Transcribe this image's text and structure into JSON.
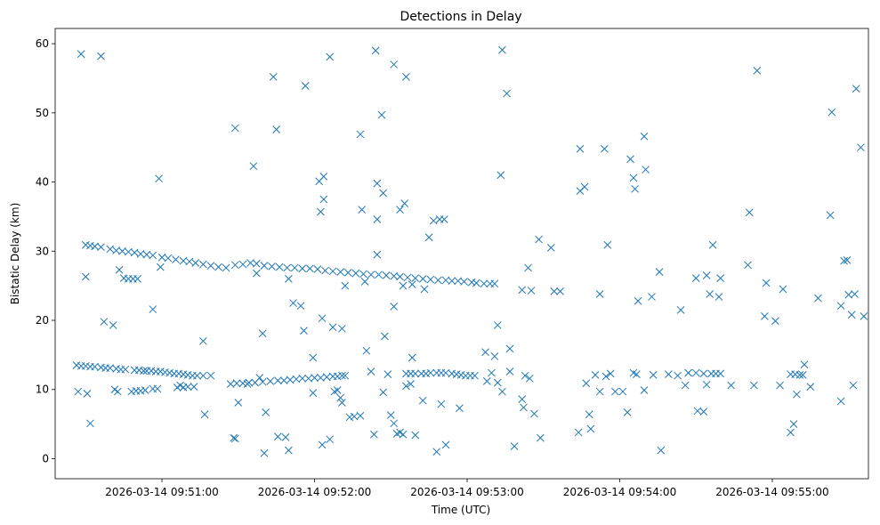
{
  "chart_data": {
    "type": "scatter",
    "title": "Detections in Delay",
    "xlabel": "Time (UTC)",
    "ylabel": "Bistatic Delay (km)",
    "marker": "x",
    "color": "#1f77b4",
    "x_unit": "minutes after 2026-03-14 09:50:00",
    "xlim": [
      0.3,
      5.63
    ],
    "ylim": [
      -2.9,
      62.2
    ],
    "xticks": [
      {
        "value": 1,
        "label": "2026-03-14 09:51:00"
      },
      {
        "value": 2,
        "label": "2026-03-14 09:52:00"
      },
      {
        "value": 3,
        "label": "2026-03-14 09:53:00"
      },
      {
        "value": 4,
        "label": "2026-03-14 09:54:00"
      },
      {
        "value": 5,
        "label": "2026-03-14 09:55:00"
      }
    ],
    "yticks": [
      0,
      10,
      20,
      30,
      40,
      50,
      60
    ],
    "points": [
      [
        0.44,
        13.5
      ],
      [
        0.47,
        13.4
      ],
      [
        0.5,
        13.4
      ],
      [
        0.53,
        13.3
      ],
      [
        0.56,
        13.3
      ],
      [
        0.6,
        13.2
      ],
      [
        0.63,
        13.1
      ],
      [
        0.66,
        13.1
      ],
      [
        0.7,
        13.0
      ],
      [
        0.73,
        12.9
      ],
      [
        0.76,
        12.9
      ],
      [
        0.82,
        12.8
      ],
      [
        0.85,
        12.8
      ],
      [
        0.88,
        12.7
      ],
      [
        0.9,
        12.7
      ],
      [
        0.93,
        12.7
      ],
      [
        0.96,
        12.6
      ],
      [
        0.99,
        12.6
      ],
      [
        1.02,
        12.5
      ],
      [
        1.05,
        12.4
      ],
      [
        1.08,
        12.3
      ],
      [
        1.11,
        12.3
      ],
      [
        1.14,
        12.2
      ],
      [
        1.17,
        12.1
      ],
      [
        1.2,
        12.0
      ],
      [
        1.23,
        12.0
      ],
      [
        1.27,
        12.0
      ],
      [
        1.32,
        12.0
      ],
      [
        0.8,
        9.7
      ],
      [
        0.83,
        9.8
      ],
      [
        0.86,
        9.8
      ],
      [
        0.89,
        9.9
      ],
      [
        0.94,
        10.1
      ],
      [
        0.97,
        10.1
      ],
      [
        1.1,
        10.3
      ],
      [
        1.14,
        10.3
      ],
      [
        1.17,
        10.4
      ],
      [
        1.21,
        10.4
      ],
      [
        1.45,
        10.8
      ],
      [
        1.49,
        10.9
      ],
      [
        1.53,
        10.9
      ],
      [
        1.57,
        11.0
      ],
      [
        1.61,
        11.0
      ],
      [
        1.66,
        11.1
      ],
      [
        1.71,
        11.2
      ],
      [
        1.76,
        11.3
      ],
      [
        1.8,
        11.3
      ],
      [
        1.84,
        11.4
      ],
      [
        1.88,
        11.5
      ],
      [
        1.92,
        11.6
      ],
      [
        1.96,
        11.6
      ],
      [
        2.0,
        11.7
      ],
      [
        2.04,
        11.7
      ],
      [
        2.08,
        11.8
      ],
      [
        2.12,
        11.9
      ],
      [
        2.15,
        11.9
      ],
      [
        2.18,
        12.0
      ],
      [
        2.2,
        12.0
      ],
      [
        2.6,
        12.3
      ],
      [
        2.63,
        12.3
      ],
      [
        2.66,
        12.3
      ],
      [
        2.7,
        12.3
      ],
      [
        2.73,
        12.3
      ],
      [
        2.76,
        12.4
      ],
      [
        2.8,
        12.4
      ],
      [
        2.83,
        12.4
      ],
      [
        2.86,
        12.4
      ],
      [
        2.9,
        12.3
      ],
      [
        2.93,
        12.2
      ],
      [
        2.96,
        12.1
      ],
      [
        2.99,
        12.0
      ],
      [
        3.02,
        12.0
      ],
      [
        3.05,
        12.0
      ],
      [
        4.45,
        12.4
      ],
      [
        4.5,
        12.4
      ],
      [
        4.55,
        12.3
      ],
      [
        4.6,
        12.3
      ],
      [
        4.63,
        12.3
      ],
      [
        4.66,
        12.3
      ],
      [
        5.12,
        12.2
      ],
      [
        5.15,
        12.2
      ],
      [
        5.18,
        12.1
      ],
      [
        5.2,
        12.1
      ],
      [
        0.5,
        30.9
      ],
      [
        0.53,
        30.8
      ],
      [
        0.56,
        30.7
      ],
      [
        0.6,
        30.6
      ],
      [
        0.66,
        30.3
      ],
      [
        0.7,
        30.1
      ],
      [
        0.74,
        30.0
      ],
      [
        0.78,
        29.9
      ],
      [
        0.82,
        29.8
      ],
      [
        0.86,
        29.6
      ],
      [
        0.9,
        29.5
      ],
      [
        0.94,
        29.4
      ],
      [
        1.0,
        29.1
      ],
      [
        1.04,
        29.0
      ],
      [
        1.09,
        28.8
      ],
      [
        1.14,
        28.6
      ],
      [
        1.18,
        28.5
      ],
      [
        1.22,
        28.3
      ],
      [
        1.27,
        28.1
      ],
      [
        1.32,
        27.9
      ],
      [
        1.37,
        27.7
      ],
      [
        1.42,
        27.6
      ],
      [
        1.48,
        28.0
      ],
      [
        1.53,
        28.1
      ],
      [
        1.58,
        28.3
      ],
      [
        1.62,
        28.2
      ],
      [
        1.67,
        27.9
      ],
      [
        1.72,
        27.8
      ],
      [
        1.77,
        27.7
      ],
      [
        1.82,
        27.6
      ],
      [
        1.87,
        27.6
      ],
      [
        1.92,
        27.5
      ],
      [
        1.97,
        27.5
      ],
      [
        2.02,
        27.4
      ],
      [
        2.07,
        27.2
      ],
      [
        2.12,
        27.1
      ],
      [
        2.17,
        27.0
      ],
      [
        2.22,
        26.9
      ],
      [
        2.27,
        26.8
      ],
      [
        2.32,
        26.7
      ],
      [
        2.37,
        26.6
      ],
      [
        2.42,
        26.6
      ],
      [
        2.47,
        26.5
      ],
      [
        2.52,
        26.4
      ],
      [
        2.56,
        26.3
      ],
      [
        2.61,
        26.2
      ],
      [
        2.66,
        26.1
      ],
      [
        2.71,
        26.0
      ],
      [
        2.76,
        25.9
      ],
      [
        2.81,
        25.8
      ],
      [
        2.86,
        25.8
      ],
      [
        2.9,
        25.7
      ],
      [
        2.94,
        25.7
      ],
      [
        2.98,
        25.6
      ],
      [
        3.03,
        25.5
      ],
      [
        3.06,
        25.4
      ],
      [
        3.11,
        25.3
      ],
      [
        3.15,
        25.3
      ],
      [
        3.18,
        25.3
      ],
      [
        0.75,
        26.1
      ],
      [
        0.78,
        26.0
      ],
      [
        0.81,
        26.0
      ],
      [
        0.84,
        26.0
      ],
      [
        2.58,
        25.0
      ],
      [
        2.64,
        25.2
      ],
      [
        0.47,
        58.5
      ],
      [
        0.6,
        58.2
      ],
      [
        1.73,
        55.2
      ],
      [
        1.94,
        53.9
      ],
      [
        2.1,
        58.1
      ],
      [
        2.4,
        59.0
      ],
      [
        2.52,
        57.0
      ],
      [
        2.6,
        55.2
      ],
      [
        3.23,
        59.1
      ],
      [
        3.26,
        52.8
      ],
      [
        4.9,
        56.1
      ],
      [
        5.39,
        50.1
      ],
      [
        5.55,
        53.5
      ],
      [
        1.48,
        47.8
      ],
      [
        1.75,
        47.6
      ],
      [
        2.3,
        46.9
      ],
      [
        2.44,
        49.7
      ],
      [
        3.74,
        44.8
      ],
      [
        3.9,
        44.8
      ],
      [
        4.16,
        46.6
      ],
      [
        5.58,
        45.0
      ],
      [
        0.98,
        40.5
      ],
      [
        1.6,
        42.3
      ],
      [
        2.03,
        40.1
      ],
      [
        2.06,
        40.8
      ],
      [
        2.04,
        35.7
      ],
      [
        2.06,
        37.5
      ],
      [
        2.31,
        36.0
      ],
      [
        2.41,
        39.8
      ],
      [
        2.45,
        38.4
      ],
      [
        2.56,
        36.0
      ],
      [
        2.59,
        36.9
      ],
      [
        2.41,
        34.6
      ],
      [
        2.78,
        34.4
      ],
      [
        2.82,
        34.6
      ],
      [
        2.85,
        34.6
      ],
      [
        3.22,
        41.0
      ],
      [
        3.74,
        38.7
      ],
      [
        3.77,
        39.3
      ],
      [
        4.07,
        43.3
      ],
      [
        4.17,
        41.8
      ],
      [
        4.09,
        40.6
      ],
      [
        4.1,
        39.0
      ],
      [
        4.85,
        35.6
      ],
      [
        5.38,
        35.2
      ],
      [
        0.5,
        26.3
      ],
      [
        0.62,
        19.8
      ],
      [
        0.68,
        19.3
      ],
      [
        0.72,
        27.3
      ],
      [
        0.94,
        21.6
      ],
      [
        0.99,
        27.7
      ],
      [
        1.62,
        26.8
      ],
      [
        1.83,
        26.0
      ],
      [
        1.86,
        22.5
      ],
      [
        1.91,
        22.1
      ],
      [
        1.93,
        18.5
      ],
      [
        1.99,
        14.6
      ],
      [
        2.05,
        20.3
      ],
      [
        2.12,
        19.0
      ],
      [
        2.18,
        18.8
      ],
      [
        2.2,
        25.0
      ],
      [
        2.33,
        25.6
      ],
      [
        2.41,
        29.5
      ],
      [
        2.46,
        17.7
      ],
      [
        2.52,
        22.0
      ],
      [
        2.64,
        14.6
      ],
      [
        2.72,
        24.5
      ],
      [
        2.75,
        32.0
      ],
      [
        3.12,
        15.4
      ],
      [
        3.18,
        14.8
      ],
      [
        3.2,
        19.3
      ],
      [
        3.28,
        15.9
      ],
      [
        3.36,
        24.4
      ],
      [
        3.4,
        27.6
      ],
      [
        3.42,
        24.3
      ],
      [
        3.47,
        31.7
      ],
      [
        3.55,
        30.5
      ],
      [
        3.57,
        24.2
      ],
      [
        3.87,
        23.8
      ],
      [
        3.92,
        30.9
      ],
      [
        4.12,
        22.8
      ],
      [
        4.21,
        23.4
      ],
      [
        4.26,
        27.0
      ],
      [
        4.4,
        21.5
      ],
      [
        4.5,
        26.1
      ],
      [
        4.57,
        26.5
      ],
      [
        4.59,
        23.8
      ],
      [
        4.61,
        30.9
      ],
      [
        4.65,
        23.4
      ],
      [
        4.66,
        26.1
      ],
      [
        4.84,
        28.0
      ],
      [
        4.95,
        20.6
      ],
      [
        4.96,
        25.4
      ],
      [
        5.02,
        19.9
      ],
      [
        5.07,
        24.5
      ],
      [
        5.45,
        22.1
      ],
      [
        5.47,
        28.6
      ],
      [
        5.49,
        28.7
      ],
      [
        5.5,
        23.7
      ],
      [
        5.54,
        23.8
      ],
      [
        5.52,
        20.8
      ],
      [
        5.6,
        20.6
      ],
      [
        5.3,
        23.2
      ],
      [
        0.45,
        9.7
      ],
      [
        0.51,
        9.4
      ],
      [
        0.53,
        5.1
      ],
      [
        0.69,
        10.0
      ],
      [
        0.71,
        9.7
      ],
      [
        1.12,
        10.6
      ],
      [
        1.27,
        17.0
      ],
      [
        1.28,
        6.4
      ],
      [
        1.47,
        3.0
      ],
      [
        1.48,
        2.9
      ],
      [
        1.5,
        8.1
      ],
      [
        1.56,
        10.8
      ],
      [
        1.64,
        11.7
      ],
      [
        1.66,
        18.1
      ],
      [
        1.68,
        6.7
      ],
      [
        1.67,
        0.8
      ],
      [
        1.76,
        3.2
      ],
      [
        1.81,
        3.1
      ],
      [
        1.83,
        1.2
      ],
      [
        1.99,
        9.5
      ],
      [
        2.05,
        2.0
      ],
      [
        2.1,
        2.8
      ],
      [
        2.13,
        9.7
      ],
      [
        2.15,
        9.9
      ],
      [
        2.17,
        8.8
      ],
      [
        2.18,
        8.1
      ],
      [
        2.23,
        6.0
      ],
      [
        2.26,
        6.1
      ],
      [
        2.3,
        6.2
      ],
      [
        2.34,
        15.6
      ],
      [
        2.37,
        12.6
      ],
      [
        2.39,
        3.5
      ],
      [
        2.45,
        9.6
      ],
      [
        2.48,
        12.2
      ],
      [
        2.5,
        6.3
      ],
      [
        2.52,
        5.1
      ],
      [
        2.54,
        3.6
      ],
      [
        2.56,
        3.8
      ],
      [
        2.58,
        3.5
      ],
      [
        2.6,
        10.5
      ],
      [
        2.63,
        10.8
      ],
      [
        2.66,
        3.4
      ],
      [
        2.71,
        8.4
      ],
      [
        2.8,
        1.0
      ],
      [
        2.83,
        7.9
      ],
      [
        2.86,
        2.0
      ],
      [
        2.95,
        7.3
      ],
      [
        3.13,
        11.2
      ],
      [
        3.16,
        12.4
      ],
      [
        3.2,
        11.0
      ],
      [
        3.23,
        9.7
      ],
      [
        3.28,
        12.6
      ],
      [
        3.31,
        1.8
      ],
      [
        3.36,
        8.6
      ],
      [
        3.37,
        7.4
      ],
      [
        3.38,
        12.0
      ],
      [
        3.41,
        11.6
      ],
      [
        3.44,
        6.5
      ],
      [
        3.48,
        3.0
      ],
      [
        3.61,
        24.2
      ],
      [
        3.73,
        3.8
      ],
      [
        3.78,
        10.9
      ],
      [
        3.8,
        6.4
      ],
      [
        3.81,
        4.3
      ],
      [
        3.84,
        12.1
      ],
      [
        3.87,
        9.7
      ],
      [
        3.91,
        11.9
      ],
      [
        3.94,
        12.3
      ],
      [
        3.97,
        9.7
      ],
      [
        4.02,
        9.7
      ],
      [
        4.05,
        6.7
      ],
      [
        4.09,
        12.4
      ],
      [
        4.11,
        12.2
      ],
      [
        4.16,
        9.9
      ],
      [
        4.22,
        12.1
      ],
      [
        4.27,
        1.2
      ],
      [
        4.32,
        12.2
      ],
      [
        4.38,
        12.0
      ],
      [
        4.43,
        10.6
      ],
      [
        4.45,
        12.4
      ],
      [
        4.51,
        6.9
      ],
      [
        4.55,
        6.8
      ],
      [
        4.57,
        10.7
      ],
      [
        4.73,
        10.6
      ],
      [
        4.88,
        10.6
      ],
      [
        5.05,
        10.6
      ],
      [
        5.12,
        3.8
      ],
      [
        5.14,
        5.0
      ],
      [
        5.16,
        9.3
      ],
      [
        5.21,
        13.6
      ],
      [
        5.25,
        10.4
      ],
      [
        5.45,
        8.3
      ],
      [
        5.53,
        10.6
      ]
    ]
  }
}
